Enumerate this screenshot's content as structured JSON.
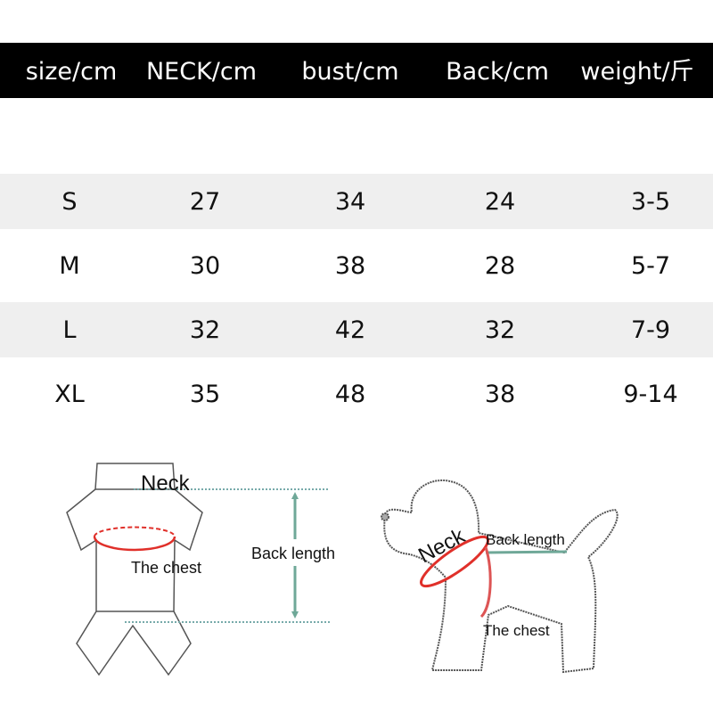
{
  "table": {
    "headers": [
      "size/cm",
      "NECK/cm",
      "bust/cm",
      "Back/cm",
      "weight/斤"
    ],
    "rows": [
      [
        "S",
        "27",
        "34",
        "24",
        "3-5"
      ],
      [
        "M",
        "30",
        "38",
        "28",
        "5-7"
      ],
      [
        "L",
        "32",
        "42",
        "32",
        "7-9"
      ],
      [
        "XL",
        "35",
        "48",
        "38",
        "9-14"
      ]
    ]
  },
  "diagram_garment": {
    "neck_label": "Neck",
    "chest_label": "The chest",
    "back_label": "Back length"
  },
  "diagram_dog": {
    "neck_label": "Neck",
    "chest_label": "The chest",
    "back_label": "Back length"
  },
  "colors": {
    "header_bg": "#000000",
    "stripe": "#efefef",
    "measure_red": "#e0302a",
    "measure_green": "#6fa898"
  }
}
